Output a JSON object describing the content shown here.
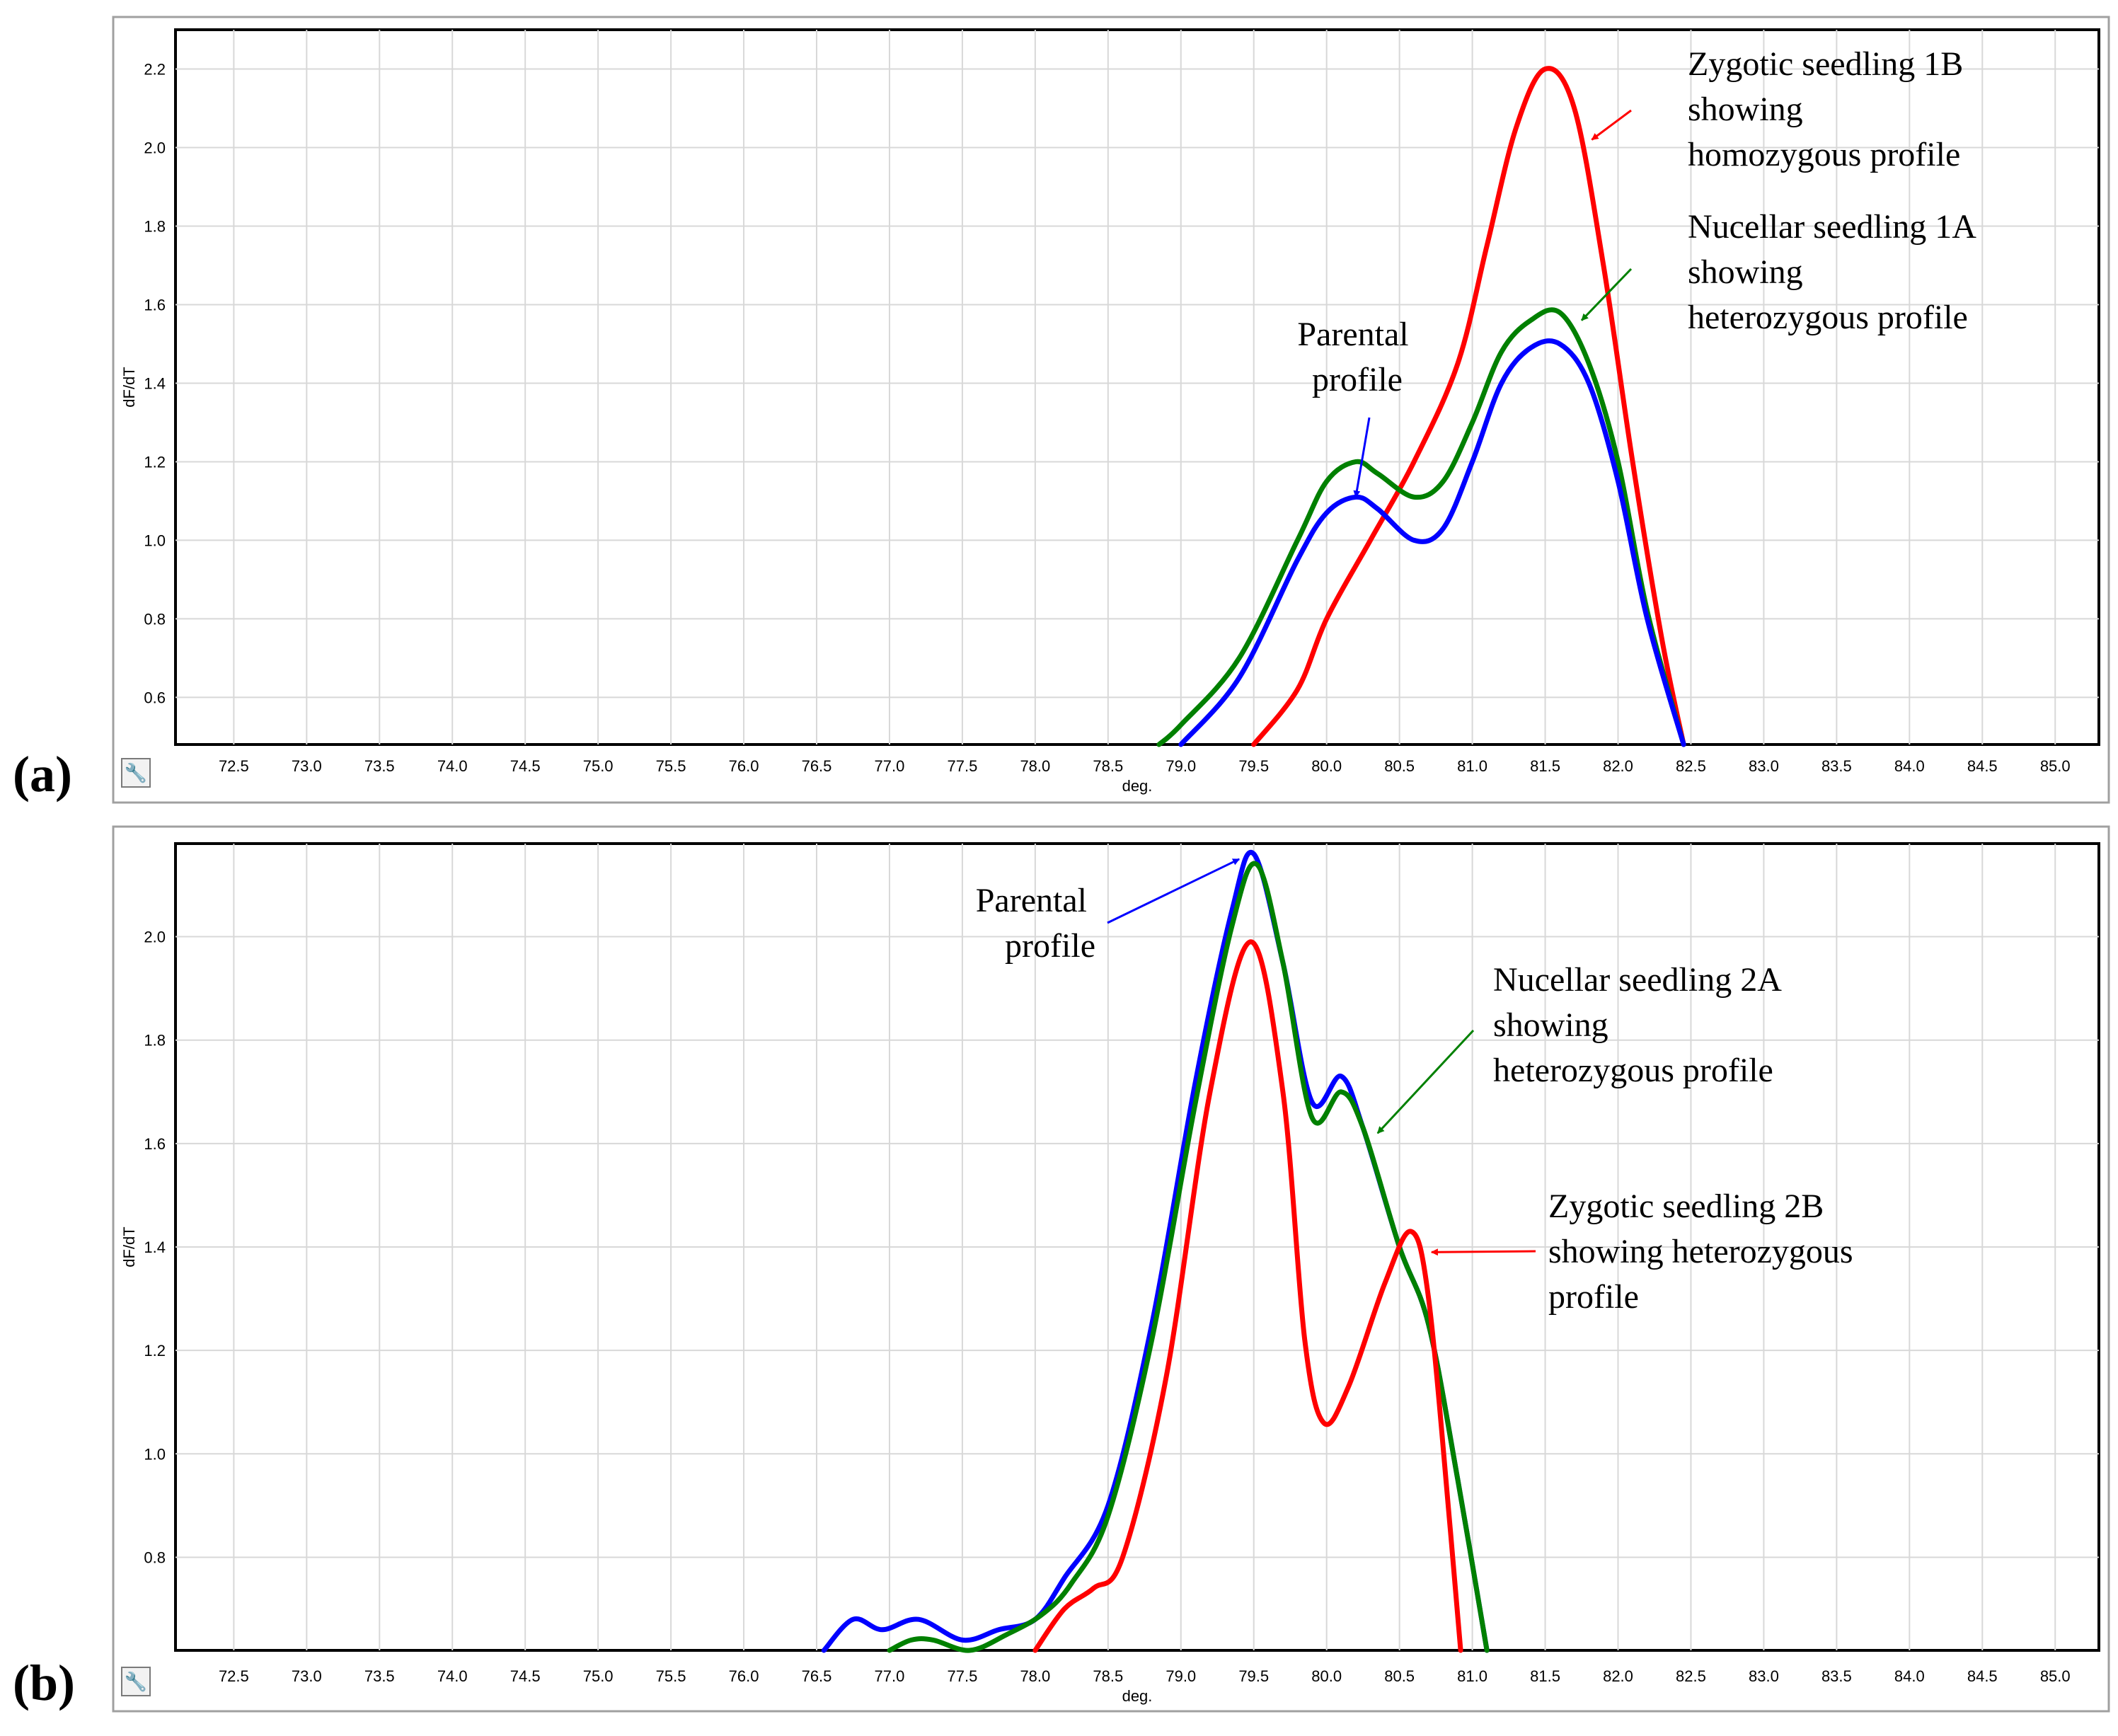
{
  "chart_data": [
    {
      "type": "line",
      "panel_label": "(a)",
      "xlabel": "deg.",
      "ylabel": "dF/dT",
      "xlim": [
        72.1,
        85.3
      ],
      "ylim": [
        0.48,
        2.3
      ],
      "grid": true,
      "x_ticks": [
        "72.5",
        "73.0",
        "73.5",
        "74.0",
        "74.5",
        "75.0",
        "75.5",
        "76.0",
        "76.5",
        "77.0",
        "77.5",
        "78.0",
        "78.5",
        "79.0",
        "79.5",
        "80.0",
        "80.5",
        "81.0",
        "81.5",
        "82.0",
        "82.5",
        "83.0",
        "83.5",
        "84.0",
        "84.5",
        "85.0"
      ],
      "y_ticks": [
        "0.6",
        "0.8",
        "1.0",
        "1.2",
        "1.4",
        "1.6",
        "1.8",
        "2.0",
        "2.2"
      ],
      "series": [
        {
          "name": "Zygotic seedling 1B",
          "color": "#ff0000",
          "x": [
            79.5,
            79.8,
            80.0,
            80.3,
            80.6,
            80.9,
            81.1,
            81.3,
            81.5,
            81.7,
            81.9,
            82.1,
            82.3,
            82.45
          ],
          "y": [
            0.48,
            0.62,
            0.8,
            1.0,
            1.2,
            1.45,
            1.75,
            2.05,
            2.2,
            2.1,
            1.7,
            1.2,
            0.75,
            0.48
          ]
        },
        {
          "name": "Nucellar seedling 1A",
          "color": "#008000",
          "x": [
            78.85,
            79.0,
            79.4,
            79.8,
            80.0,
            80.2,
            80.35,
            80.6,
            80.8,
            81.0,
            81.2,
            81.4,
            81.6,
            81.8,
            82.0,
            82.2,
            82.45
          ],
          "y": [
            0.48,
            0.53,
            0.7,
            1.0,
            1.15,
            1.2,
            1.17,
            1.11,
            1.15,
            1.3,
            1.48,
            1.56,
            1.58,
            1.45,
            1.2,
            0.82,
            0.48
          ]
        },
        {
          "name": "Parental",
          "color": "#0000ff",
          "x": [
            79.0,
            79.4,
            79.8,
            80.0,
            80.2,
            80.35,
            80.6,
            80.8,
            81.0,
            81.2,
            81.4,
            81.6,
            81.8,
            82.0,
            82.2,
            82.45
          ],
          "y": [
            0.48,
            0.65,
            0.95,
            1.07,
            1.11,
            1.08,
            1.0,
            1.03,
            1.2,
            1.4,
            1.49,
            1.5,
            1.4,
            1.15,
            0.8,
            0.48
          ]
        }
      ],
      "annotations": [
        {
          "lines": [
            "Zygotic seedling 1B",
            "showing",
            "homozygous profile"
          ],
          "color": "#ff0000",
          "target": [
            81.82,
            2.02
          ]
        },
        {
          "lines": [
            "Nucellar seedling 1A",
            "showing",
            "heterozygous profile"
          ],
          "color": "#008000",
          "target": [
            81.75,
            1.56
          ]
        },
        {
          "lines": [
            "Parental",
            "profile"
          ],
          "color": "#0000ff",
          "target": [
            80.2,
            1.11
          ]
        }
      ]
    },
    {
      "type": "line",
      "panel_label": "(b)",
      "xlabel": "deg.",
      "ylabel": "dF/dT",
      "xlim": [
        72.1,
        85.3
      ],
      "ylim": [
        0.62,
        2.18
      ],
      "grid": true,
      "x_ticks": [
        "72.5",
        "73.0",
        "73.5",
        "74.0",
        "74.5",
        "75.0",
        "75.5",
        "76.0",
        "76.5",
        "77.0",
        "77.5",
        "78.0",
        "78.5",
        "79.0",
        "79.5",
        "80.0",
        "80.5",
        "81.0",
        "81.5",
        "82.0",
        "82.5",
        "83.0",
        "83.5",
        "84.0",
        "84.5",
        "85.0"
      ],
      "y_ticks": [
        "0.8",
        "1.0",
        "1.2",
        "1.4",
        "1.6",
        "1.8",
        "2.0"
      ],
      "series": [
        {
          "name": "Parental",
          "color": "#0000ff",
          "x": [
            76.55,
            76.75,
            76.95,
            77.2,
            77.5,
            77.75,
            78.0,
            78.2,
            78.5,
            78.8,
            79.1,
            79.35,
            79.5,
            79.7,
            79.9,
            80.1,
            80.25,
            80.5,
            80.7,
            80.9,
            81.1
          ],
          "y": [
            0.62,
            0.68,
            0.66,
            0.68,
            0.64,
            0.66,
            0.68,
            0.76,
            0.9,
            1.25,
            1.72,
            2.05,
            2.16,
            1.95,
            1.68,
            1.73,
            1.63,
            1.4,
            1.25,
            0.95,
            0.62
          ]
        },
        {
          "name": "Nucellar seedling 2A",
          "color": "#008000",
          "x": [
            77.0,
            77.15,
            77.3,
            77.55,
            77.8,
            78.05,
            78.25,
            78.5,
            78.8,
            79.1,
            79.35,
            79.52,
            79.7,
            79.9,
            80.1,
            80.25,
            80.5,
            80.7,
            80.9,
            81.1
          ],
          "y": [
            0.62,
            0.64,
            0.64,
            0.62,
            0.65,
            0.69,
            0.75,
            0.88,
            1.22,
            1.68,
            2.02,
            2.14,
            1.95,
            1.65,
            1.7,
            1.63,
            1.4,
            1.25,
            0.95,
            0.62
          ]
        },
        {
          "name": "Zygotic seedling 2B",
          "color": "#ff0000",
          "x": [
            78.0,
            78.2,
            78.4,
            78.6,
            78.9,
            79.2,
            79.48,
            79.7,
            79.85,
            79.98,
            80.15,
            80.4,
            80.58,
            80.7,
            80.85,
            80.92
          ],
          "y": [
            0.62,
            0.7,
            0.74,
            0.8,
            1.15,
            1.7,
            1.99,
            1.7,
            1.22,
            1.06,
            1.13,
            1.33,
            1.43,
            1.3,
            0.85,
            0.62
          ]
        }
      ],
      "annotations": [
        {
          "lines": [
            "Parental",
            "profile"
          ],
          "color": "#0000ff",
          "target": [
            79.4,
            2.15
          ]
        },
        {
          "lines": [
            "Nucellar seedling 2A",
            "showing",
            "heterozygous profile"
          ],
          "color": "#008000",
          "target": [
            80.35,
            1.62
          ]
        },
        {
          "lines": [
            "Zygotic seedling 2B",
            "showing heterozygous",
            "profile"
          ],
          "color": "#ff0000",
          "target": [
            80.72,
            1.39
          ]
        }
      ]
    }
  ]
}
